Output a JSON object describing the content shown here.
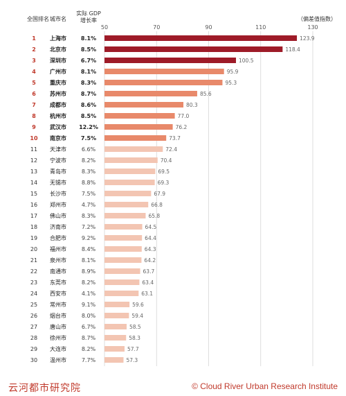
{
  "headers": {
    "rank": "全国排名",
    "city": "城市名",
    "gdp_line1": "实际 GDP",
    "gdp_line2": "增长率",
    "deviation": "（偏差值指数）"
  },
  "footer": {
    "left": "云河都市研究院",
    "right": "© Cloud River Urban Research Institute"
  },
  "colors": {
    "top3": "#9e1b28",
    "top10": "#e8896a",
    "rest": "#f3c5b2"
  },
  "chart_data": {
    "type": "bar",
    "orientation": "horizontal",
    "xlim": [
      50,
      130
    ],
    "x_ticks": [
      50,
      70,
      90,
      110,
      130
    ],
    "ranks": [
      1,
      2,
      3,
      4,
      5,
      6,
      7,
      8,
      9,
      10,
      11,
      12,
      13,
      14,
      15,
      16,
      17,
      18,
      19,
      20,
      21,
      22,
      23,
      24,
      25,
      26,
      27,
      28,
      29,
      30
    ],
    "categories": [
      "上海市",
      "北京市",
      "深圳市",
      "广州市",
      "重庆市",
      "苏州市",
      "成都市",
      "杭州市",
      "武汉市",
      "南京市",
      "天津市",
      "宁波市",
      "青岛市",
      "无锡市",
      "长沙市",
      "郑州市",
      "佛山市",
      "济南市",
      "合肥市",
      "福州市",
      "泉州市",
      "南通市",
      "东莞市",
      "西安市",
      "常州市",
      "烟台市",
      "唐山市",
      "徐州市",
      "大连市",
      "温州市"
    ],
    "gdp_growth": [
      "8.1%",
      "8.5%",
      "6.7%",
      "8.1%",
      "8.3%",
      "8.7%",
      "8.6%",
      "8.5%",
      "12.2%",
      "7.5%",
      "6.6%",
      "8.2%",
      "8.3%",
      "8.8%",
      "7.5%",
      "4.7%",
      "8.3%",
      "7.2%",
      "9.2%",
      "8.4%",
      "8.1%",
      "8.9%",
      "8.2%",
      "4.1%",
      "9.1%",
      "8.0%",
      "6.7%",
      "8.7%",
      "8.2%",
      "7.7%"
    ],
    "values": [
      123.9,
      118.4,
      100.5,
      95.9,
      95.3,
      85.6,
      80.3,
      77.0,
      76.2,
      73.7,
      72.4,
      70.4,
      69.5,
      69.3,
      67.9,
      66.8,
      65.8,
      64.5,
      64.4,
      64.3,
      64.2,
      63.7,
      63.4,
      63.1,
      59.6,
      59.4,
      58.5,
      58.3,
      57.7,
      57.3
    ],
    "value_labels": [
      "123.9",
      "118.4",
      "100.5",
      "95.9",
      "95.3",
      "85.6",
      "80.3",
      "77.0",
      "76.2",
      "73.7",
      "72.4",
      "70.4",
      "69.5",
      "69.3",
      "67.9",
      "66.8",
      "65.8",
      "64.5",
      "64.4",
      "64.3",
      "64.2",
      "63.7",
      "63.4",
      "63.1",
      "59.6",
      "59.4",
      "58.5",
      "58.3",
      "57.7",
      "57.3"
    ]
  }
}
